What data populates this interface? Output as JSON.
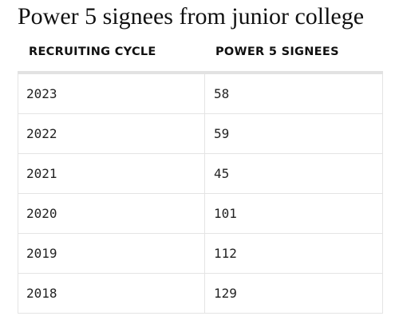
{
  "title": "Power 5 signees from junior college",
  "table": {
    "columns": [
      "RECRUITING CYCLE",
      "POWER 5 SIGNEES"
    ],
    "rows": [
      [
        "2023",
        58
      ],
      [
        "2022",
        59
      ],
      [
        "2021",
        45
      ],
      [
        "2020",
        101
      ],
      [
        "2019",
        112
      ],
      [
        "2018",
        129
      ]
    ]
  }
}
